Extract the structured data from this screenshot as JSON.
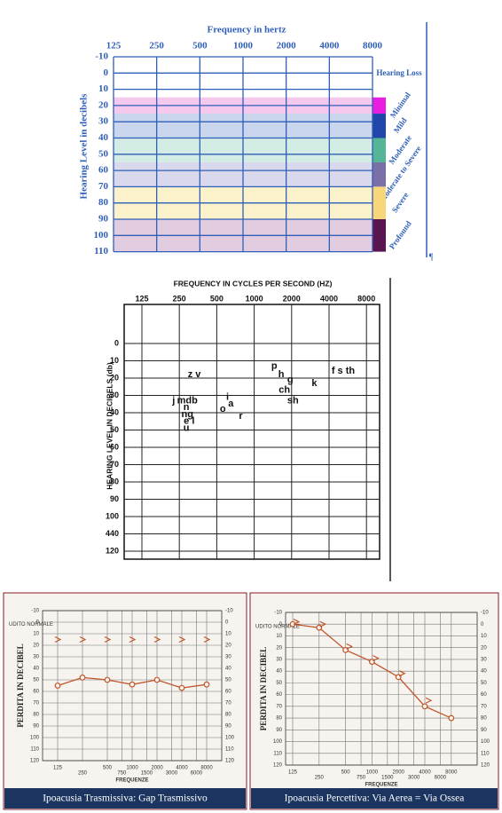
{
  "loss_audiogram": {
    "title": "Frequency in hertz",
    "frequencies": [
      "125",
      "250",
      "500",
      "1000",
      "2000",
      "4000",
      "8000"
    ],
    "levels": [
      -10,
      0,
      10,
      20,
      30,
      40,
      50,
      60,
      70,
      80,
      90,
      100,
      110
    ],
    "y_label": "Hearing Level in decibels",
    "legend_title": "Hearing Loss",
    "bands": [
      {
        "label": "Minimal",
        "from": 15,
        "to": 25,
        "color": "#f5c8ee",
        "bar_color": "#e81fe0"
      },
      {
        "label": "Mild",
        "from": 25,
        "to": 40,
        "color": "#c9d6ee",
        "bar_color": "#1f46a8"
      },
      {
        "label": "Moderate",
        "from": 40,
        "to": 55,
        "color": "#d3ece4",
        "bar_color": "#54b597"
      },
      {
        "label": "Moderate to Severe",
        "from": 55,
        "to": 70,
        "color": "#d9d8ec",
        "bar_color": "#7b6fa8"
      },
      {
        "label": "Severe",
        "from": 70,
        "to": 90,
        "color": "#fbf2cc",
        "bar_color": "#f7d77a"
      },
      {
        "label": "Profound",
        "from": 90,
        "to": 110,
        "color": "#e2cce0",
        "bar_color": "#5a1450"
      }
    ],
    "mark": "¶"
  },
  "speech_audiogram": {
    "title": "FREQUENCY IN CYCLES PER SECOND (HZ)",
    "frequencies": [
      "125",
      "250",
      "500",
      "1000",
      "2000",
      "4000",
      "8000"
    ],
    "levels": [
      0,
      10,
      20,
      30,
      40,
      50,
      60,
      70,
      80,
      90,
      100,
      {
        "value": 110,
        "label": "440"
      },
      120
    ],
    "y_label": "HEARING LEVEL IN DECIBELS (db)",
    "sounds": [
      {
        "text": "z v",
        "hz": 330,
        "db": 18
      },
      {
        "text": "j",
        "hz": 225,
        "db": 33
      },
      {
        "text": "mdb",
        "hz": 290,
        "db": 33
      },
      {
        "text": "n",
        "hz": 285,
        "db": 37
      },
      {
        "text": "ng",
        "hz": 290,
        "db": 41
      },
      {
        "text": "e l",
        "hz": 300,
        "db": 45
      },
      {
        "text": "u",
        "hz": 285,
        "db": 49
      },
      {
        "text": "i",
        "hz": 610,
        "db": 31
      },
      {
        "text": "o",
        "hz": 560,
        "db": 38
      },
      {
        "text": "a",
        "hz": 650,
        "db": 35
      },
      {
        "text": "r",
        "hz": 780,
        "db": 42
      },
      {
        "text": "p",
        "hz": 1450,
        "db": 13
      },
      {
        "text": "h",
        "hz": 1650,
        "db": 18
      },
      {
        "text": "g",
        "hz": 1950,
        "db": 21
      },
      {
        "text": "ch",
        "hz": 1750,
        "db": 27
      },
      {
        "text": "sh",
        "hz": 2050,
        "db": 33
      },
      {
        "text": "k",
        "hz": 3050,
        "db": 23
      },
      {
        "text": "f s th",
        "hz": 5200,
        "db": 16
      }
    ]
  },
  "panels": [
    {
      "caption": "Ipoacusia Trasmissiva: Gap Trasmissivo",
      "y_label": "PERDITA IN DECIBEL",
      "x_label": "FREQUENZE",
      "normal_label": "UDITO NORMALE",
      "yticks": [
        -10,
        0,
        10,
        20,
        30,
        40,
        50,
        60,
        70,
        80,
        90,
        100,
        110,
        120
      ],
      "xticks": [
        125,
        250,
        500,
        750,
        1000,
        1500,
        2000,
        3000,
        4000,
        6000,
        8000
      ],
      "x": [
        125,
        250,
        500,
        1000,
        2000,
        4000,
        8000
      ],
      "air": [
        55,
        48,
        50,
        54,
        50,
        57,
        54
      ],
      "bone": [
        15,
        15,
        15,
        15,
        15,
        15,
        15
      ]
    },
    {
      "caption": "Ipoacusia Percettiva: Via Aerea = Via Ossea",
      "y_label": "PERDITA IN DECIBEL",
      "x_label": "FREQUENZE",
      "normal_label": "UDITO NORMALE",
      "yticks": [
        -10,
        0,
        10,
        20,
        30,
        40,
        50,
        60,
        70,
        80,
        90,
        100,
        110,
        120
      ],
      "xticks": [
        125,
        250,
        500,
        750,
        1000,
        1500,
        2000,
        3000,
        4000,
        6000,
        8000
      ],
      "x": [
        125,
        250,
        500,
        1000,
        2000,
        4000,
        8000
      ],
      "air": [
        0,
        3,
        22,
        32,
        45,
        70,
        80
      ],
      "bone": [
        -2,
        0,
        19,
        29,
        42,
        65,
        null
      ]
    }
  ]
}
